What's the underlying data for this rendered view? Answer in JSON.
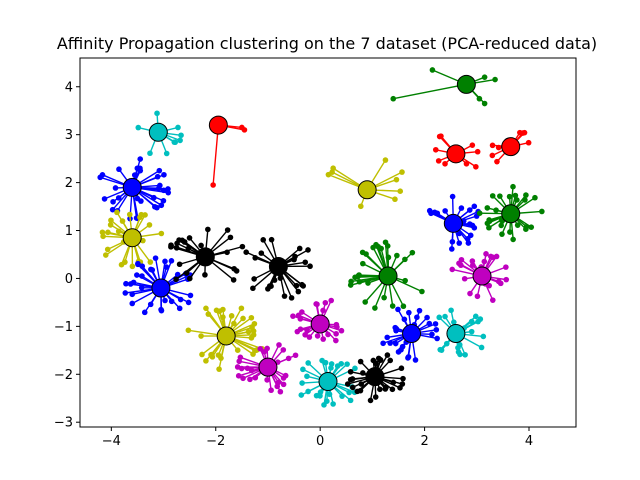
{
  "chart_data": {
    "type": "scatter",
    "title": "Affinity Propagation clustering on the 7 dataset (PCA-reduced data)",
    "xlabel": "",
    "ylabel": "",
    "xlim": [
      -4.6,
      4.9
    ],
    "ylim": [
      -3.1,
      4.6
    ],
    "x_ticks": [
      -4,
      -2,
      0,
      2,
      4
    ],
    "y_ticks": [
      -3,
      -2,
      -1,
      0,
      1,
      2,
      3,
      4
    ],
    "x_tick_labels": [
      "−4",
      "−2",
      "0",
      "2",
      "4"
    ],
    "y_tick_labels": [
      "−3",
      "−2",
      "−1",
      "0",
      "1",
      "2",
      "3",
      "4"
    ],
    "grid": false,
    "clusters": [
      {
        "color": "#0000ff",
        "center": [
          -3.6,
          1.9
        ],
        "count": 32,
        "spread": 0.7,
        "seed": 11
      },
      {
        "color": "#00bfbf",
        "center": [
          -3.1,
          3.05
        ],
        "count": 9,
        "spread": 0.5,
        "seed": 12
      },
      {
        "color": "#ff0000",
        "center": [
          -1.95,
          3.2
        ],
        "count": 3,
        "spread": 0.7,
        "seed": 13,
        "points": [
          [
            -2.05,
            1.95
          ],
          [
            -1.5,
            3.15
          ],
          [
            -1.45,
            3.1
          ]
        ]
      },
      {
        "color": "#bfbf00",
        "center": [
          -3.6,
          0.85
        ],
        "count": 24,
        "spread": 0.65,
        "seed": 14
      },
      {
        "color": "#0000ff",
        "center": [
          -3.05,
          -0.2
        ],
        "count": 32,
        "spread": 0.7,
        "seed": 15
      },
      {
        "color": "#000000",
        "center": [
          -2.2,
          0.45
        ],
        "count": 24,
        "spread": 0.75,
        "seed": 16
      },
      {
        "color": "#000000",
        "center": [
          -0.8,
          0.25
        ],
        "count": 24,
        "spread": 0.75,
        "seed": 17
      },
      {
        "color": "#bfbf00",
        "center": [
          -1.8,
          -1.2
        ],
        "count": 32,
        "spread": 0.75,
        "seed": 18
      },
      {
        "color": "#bf00bf",
        "center": [
          -1.0,
          -1.85
        ],
        "count": 26,
        "spread": 0.6,
        "seed": 19
      },
      {
        "color": "#bf00bf",
        "center": [
          0.0,
          -0.95
        ],
        "count": 22,
        "spread": 0.6,
        "seed": 20
      },
      {
        "color": "#00bfbf",
        "center": [
          0.15,
          -2.15
        ],
        "count": 26,
        "spread": 0.6,
        "seed": 21
      },
      {
        "color": "#000000",
        "center": [
          1.05,
          -2.05
        ],
        "count": 28,
        "spread": 0.55,
        "seed": 22
      },
      {
        "color": "#bfbf00",
        "center": [
          0.9,
          1.85
        ],
        "count": 9,
        "spread": 0.85,
        "seed": 23
      },
      {
        "color": "#008000",
        "center": [
          1.3,
          0.05
        ],
        "count": 28,
        "spread": 0.75,
        "seed": 24
      },
      {
        "color": "#0000ff",
        "center": [
          1.75,
          -1.15
        ],
        "count": 26,
        "spread": 0.6,
        "seed": 25
      },
      {
        "color": "#00bfbf",
        "center": [
          2.6,
          -1.15
        ],
        "count": 20,
        "spread": 0.6,
        "seed": 26
      },
      {
        "color": "#bf00bf",
        "center": [
          3.1,
          0.05
        ],
        "count": 22,
        "spread": 0.6,
        "seed": 27
      },
      {
        "color": "#0000ff",
        "center": [
          2.55,
          1.15
        ],
        "count": 22,
        "spread": 0.6,
        "seed": 28
      },
      {
        "color": "#008000",
        "center": [
          3.65,
          1.35
        ],
        "count": 26,
        "spread": 0.6,
        "seed": 29
      },
      {
        "color": "#ff0000",
        "center": [
          2.6,
          2.6
        ],
        "count": 9,
        "spread": 0.5,
        "seed": 30
      },
      {
        "color": "#ff0000",
        "center": [
          3.65,
          2.75
        ],
        "count": 8,
        "spread": 0.45,
        "seed": 31
      },
      {
        "color": "#008000",
        "center": [
          2.8,
          4.05
        ],
        "count": 6,
        "spread": 0.7,
        "seed": 32,
        "points": [
          [
            1.4,
            3.75
          ],
          [
            2.15,
            4.35
          ],
          [
            3.15,
            4.2
          ],
          [
            3.35,
            4.15
          ],
          [
            3.15,
            3.65
          ],
          [
            3.05,
            3.75
          ]
        ]
      }
    ]
  }
}
